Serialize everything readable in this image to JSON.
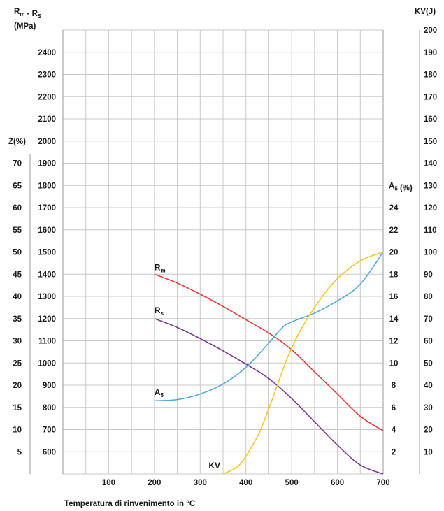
{
  "chart_data": {
    "type": "line",
    "x_unit_label": "Temperatura di rinvenimento in °C",
    "x_ticks": [
      100,
      200,
      300,
      400,
      500,
      600,
      700
    ],
    "xlim": [
      0,
      700
    ],
    "axes": {
      "left_main": {
        "label_parts": [
          {
            "t": "R"
          },
          {
            "t": "m",
            "sub": true
          },
          {
            "t": " - R"
          },
          {
            "t": "S",
            "sub": true
          }
        ],
        "label_line2": "(MPa)",
        "ticks": [
          600,
          700,
          800,
          900,
          1000,
          1100,
          1200,
          1300,
          1400,
          1500,
          1600,
          1700,
          1800,
          1900,
          2000,
          2100,
          2200,
          2300,
          2400
        ],
        "range": [
          500,
          2500
        ]
      },
      "left_z": {
        "label": "Z(%)",
        "ticks": [
          5,
          10,
          15,
          20,
          25,
          30,
          35,
          40,
          45,
          50,
          55,
          60,
          65,
          70
        ]
      },
      "right_a5": {
        "label_parts": [
          {
            "t": "A"
          },
          {
            "t": "5",
            "sub": true
          },
          {
            "t": " (%)"
          }
        ],
        "ticks": [
          2,
          4,
          6,
          8,
          10,
          12,
          14,
          16,
          18,
          20,
          22,
          24
        ]
      },
      "right_kv": {
        "label": "KV(J)",
        "ticks": [
          10,
          20,
          30,
          40,
          50,
          60,
          70,
          80,
          90,
          100,
          110,
          120,
          130,
          140,
          150,
          160,
          170,
          180,
          190,
          200
        ]
      }
    },
    "series": [
      {
        "name": "Rm",
        "label_parts": [
          {
            "t": "R"
          },
          {
            "t": "m",
            "sub": true
          }
        ],
        "axis": "left_main",
        "color": "#e8322c",
        "x": [
          200,
          250,
          300,
          350,
          400,
          450,
          500,
          550,
          600,
          650,
          700
        ],
        "y": [
          1400,
          1360,
          1310,
          1255,
          1195,
          1135,
          1060,
          960,
          860,
          760,
          695
        ]
      },
      {
        "name": "Rs",
        "label_parts": [
          {
            "t": "R"
          },
          {
            "t": "s",
            "sub": true
          }
        ],
        "axis": "left_main",
        "color": "#7b2d8e",
        "x": [
          200,
          250,
          300,
          350,
          400,
          450,
          500,
          550,
          600,
          650,
          700
        ],
        "y": [
          1200,
          1160,
          1110,
          1055,
          995,
          930,
          840,
          735,
          630,
          540,
          500
        ]
      },
      {
        "name": "A5",
        "label_parts": [
          {
            "t": "A"
          },
          {
            "t": "5",
            "sub": true
          }
        ],
        "axis": "right_a5",
        "color": "#4aa8d8",
        "x": [
          200,
          250,
          300,
          350,
          400,
          450,
          480,
          500,
          550,
          600,
          650,
          700
        ],
        "y": [
          6.6,
          6.7,
          7.2,
          8.1,
          9.6,
          11.8,
          13.2,
          13.7,
          14.5,
          15.6,
          17.1,
          20.0
        ]
      },
      {
        "name": "KV",
        "label_parts": [
          {
            "t": "KV"
          }
        ],
        "axis": "right_kv",
        "color": "#f5c518",
        "x": [
          350,
          380,
          400,
          430,
          460,
          490,
          520,
          560,
          600,
          650,
          700
        ],
        "y": [
          0,
          3,
          8,
          19,
          35,
          52,
          65,
          78,
          88,
          96,
          100
        ]
      }
    ]
  }
}
